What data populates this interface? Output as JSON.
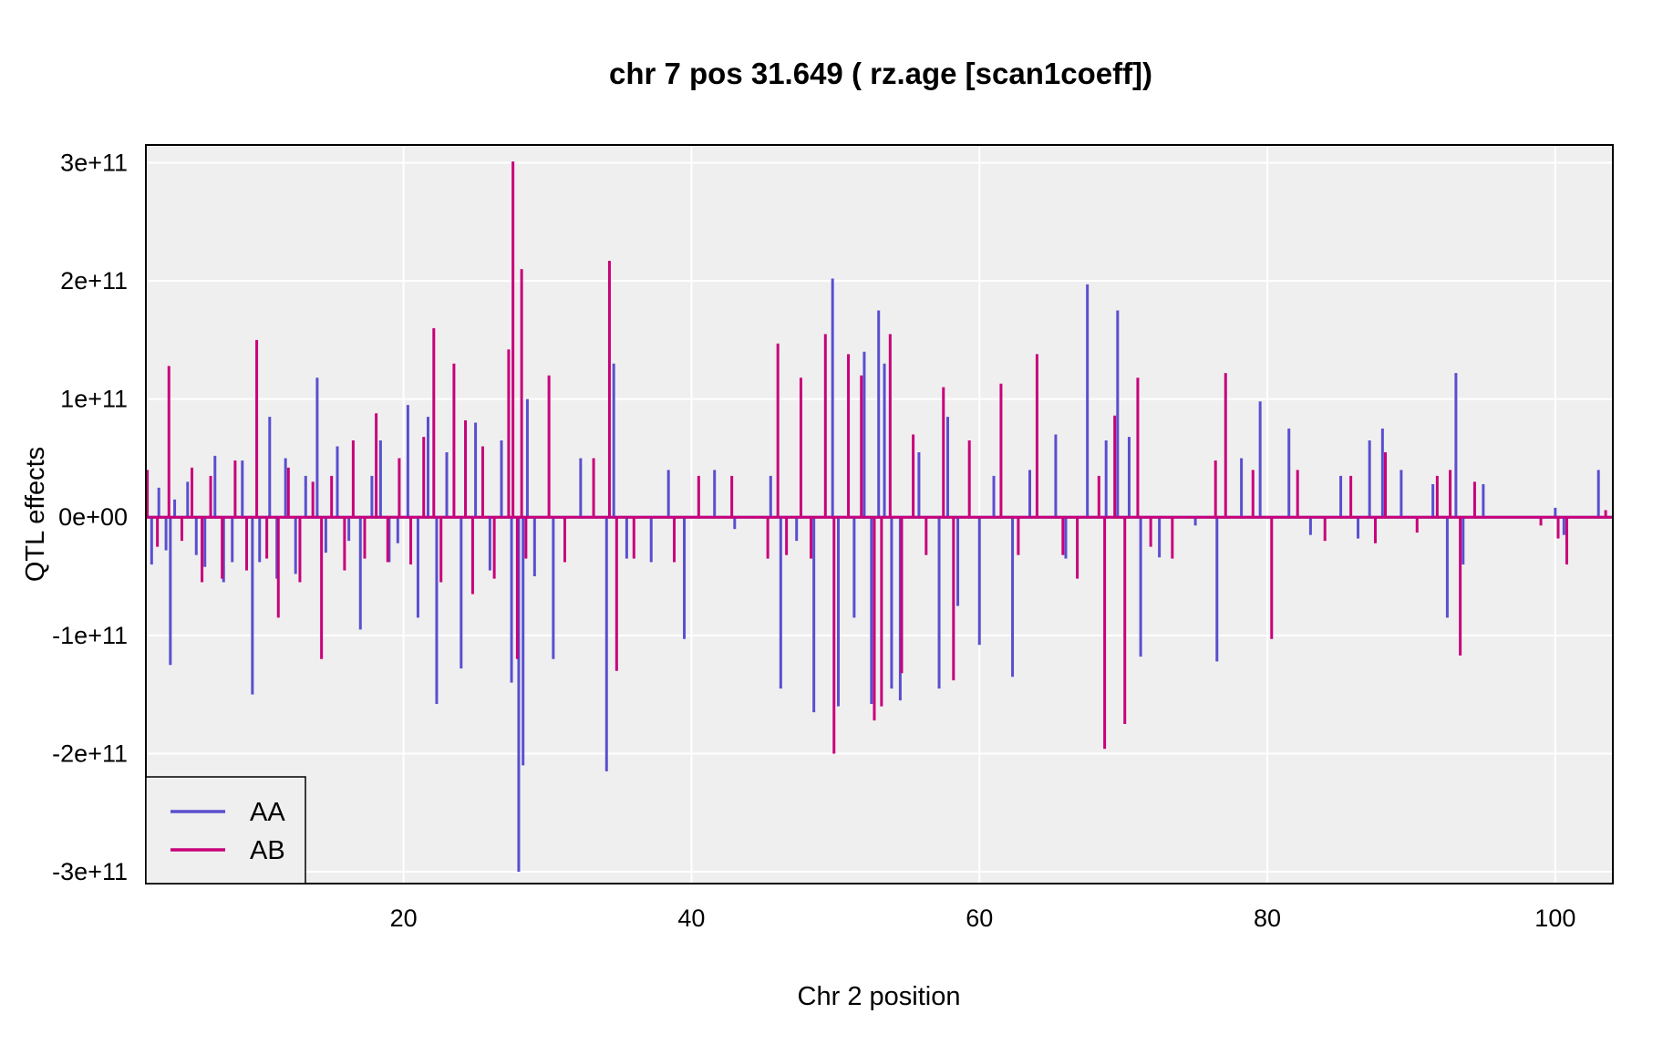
{
  "chart_data": {
    "type": "line",
    "title": "chr 7 pos 31.649 ( rz.age  [scan1coeff])",
    "xlabel": "Chr 2 position",
    "ylabel": "QTL effects",
    "xlim": [
      2.1,
      104
    ],
    "ylim": [
      -310000000000.0,
      315000000000.0
    ],
    "x_ticks": [
      20,
      40,
      60,
      80,
      100
    ],
    "x_tick_labels": [
      "20",
      "40",
      "60",
      "80",
      "100"
    ],
    "y_ticks": [
      300000000000.0,
      200000000000.0,
      100000000000.0,
      0,
      -100000000000.0,
      -200000000000.0,
      -300000000000.0
    ],
    "y_tick_labels": [
      "3e+11",
      "2e+11",
      "1e+11",
      "0e+00",
      "-1e+11",
      "-2e+11",
      "-3e+11"
    ],
    "grid": true,
    "legend_position": "bottom-left",
    "colors": {
      "AA": "#5a4fcf",
      "AB": "#c8007a",
      "panel_bg": "#efefef",
      "grid": "#ffffff"
    },
    "series": [
      {
        "name": "AA",
        "color": "#5a4fcf",
        "x": [
          2.5,
          3.0,
          3.5,
          3.8,
          4.1,
          5.0,
          5.6,
          6.2,
          6.9,
          7.5,
          8.1,
          8.8,
          9.5,
          10.0,
          10.7,
          11.2,
          11.8,
          12.5,
          13.2,
          14.0,
          14.6,
          15.4,
          16.2,
          17.0,
          17.8,
          18.4,
          19.0,
          19.6,
          20.3,
          21.0,
          21.7,
          22.3,
          23.0,
          24.0,
          25.0,
          26.0,
          26.8,
          27.5,
          28.0,
          28.3,
          28.6,
          29.1,
          30.4,
          32.3,
          34.1,
          34.6,
          35.5,
          37.2,
          38.4,
          39.5,
          41.6,
          43.0,
          45.5,
          46.2,
          47.3,
          48.5,
          49.8,
          50.2,
          51.3,
          52.0,
          52.5,
          53.0,
          53.4,
          53.9,
          54.5,
          55.8,
          57.2,
          57.8,
          58.5,
          60.0,
          61.0,
          62.3,
          63.5,
          65.3,
          66.0,
          67.5,
          68.8,
          69.6,
          70.4,
          71.2,
          72.5,
          75.0,
          76.5,
          78.2,
          79.5,
          81.5,
          83.0,
          85.1,
          86.3,
          87.1,
          88.0,
          89.3,
          91.5,
          92.5,
          93.1,
          93.6,
          95.0,
          100.0,
          100.6,
          103.0
        ],
        "y": [
          -40000000000.0,
          25000000000.0,
          -28000000000.0,
          -125000000000.0,
          15000000000.0,
          30000000000.0,
          -32000000000.0,
          -42000000000.0,
          52000000000.0,
          -55000000000.0,
          -38000000000.0,
          48000000000.0,
          -150000000000.0,
          -38000000000.0,
          85000000000.0,
          -52000000000.0,
          50000000000.0,
          -48000000000.0,
          35000000000.0,
          118000000000.0,
          -30000000000.0,
          60000000000.0,
          -20000000000.0,
          -95000000000.0,
          35000000000.0,
          65000000000.0,
          -38000000000.0,
          -22000000000.0,
          95000000000.0,
          -85000000000.0,
          85000000000.0,
          -158000000000.0,
          55000000000.0,
          -128000000000.0,
          80000000000.0,
          -45000000000.0,
          65000000000.0,
          -140000000000.0,
          -300000000000.0,
          -210000000000.0,
          100000000000.0,
          -50000000000.0,
          -120000000000.0,
          50000000000.0,
          -215000000000.0,
          130000000000.0,
          -35000000000.0,
          -38000000000.0,
          40000000000.0,
          -103000000000.0,
          40000000000.0,
          -10000000000.0,
          35000000000.0,
          -145000000000.0,
          -20000000000.0,
          -165000000000.0,
          202000000000.0,
          -160000000000.0,
          -85000000000.0,
          140000000000.0,
          -158000000000.0,
          175000000000.0,
          130000000000.0,
          -145000000000.0,
          -155000000000.0,
          55000000000.0,
          -145000000000.0,
          85000000000.0,
          -75000000000.0,
          -108000000000.0,
          35000000000.0,
          -135000000000.0,
          40000000000.0,
          70000000000.0,
          -35000000000.0,
          197000000000.0,
          65000000000.0,
          175000000000.0,
          68000000000.0,
          -118000000000.0,
          -34000000000.0,
          -7000000000.0,
          -122000000000.0,
          50000000000.0,
          98000000000.0,
          75000000000.0,
          -15000000000.0,
          35000000000.0,
          -18000000000.0,
          65000000000.0,
          75000000000.0,
          40000000000.0,
          28000000000.0,
          -85000000000.0,
          122000000000.0,
          -40000000000.0,
          28000000000.0,
          8000000000.0,
          -15000000000.0,
          40000000000.0
        ]
      },
      {
        "name": "AB",
        "color": "#c8007a",
        "x": [
          2.2,
          2.9,
          3.7,
          4.6,
          5.3,
          6.0,
          6.6,
          7.4,
          8.3,
          9.1,
          9.8,
          10.5,
          11.3,
          12.0,
          12.8,
          13.7,
          14.3,
          15.0,
          15.9,
          16.5,
          17.3,
          18.1,
          18.9,
          19.7,
          20.5,
          21.4,
          22.1,
          22.6,
          23.5,
          24.3,
          24.8,
          25.5,
          26.3,
          27.3,
          27.6,
          27.9,
          28.2,
          28.5,
          30.1,
          31.2,
          33.2,
          34.3,
          34.8,
          36.0,
          38.8,
          40.5,
          42.8,
          45.3,
          46.0,
          46.6,
          47.6,
          48.3,
          49.3,
          49.9,
          50.9,
          51.8,
          52.7,
          53.2,
          53.8,
          54.6,
          55.4,
          56.3,
          57.5,
          58.2,
          59.3,
          61.5,
          62.7,
          64.0,
          65.8,
          66.8,
          68.3,
          68.7,
          69.4,
          70.1,
          71.0,
          71.9,
          73.4,
          76.4,
          77.1,
          79.0,
          80.3,
          82.1,
          84.0,
          85.8,
          87.5,
          88.2,
          90.4,
          91.8,
          92.7,
          93.4,
          94.4,
          99.0,
          100.2,
          100.8,
          103.5
        ],
        "y": [
          40000000000.0,
          -25000000000.0,
          128000000000.0,
          -20000000000.0,
          42000000000.0,
          -55000000000.0,
          35000000000.0,
          -52000000000.0,
          48000000000.0,
          -45000000000.0,
          150000000000.0,
          -35000000000.0,
          -85000000000.0,
          42000000000.0,
          -55000000000.0,
          30000000000.0,
          -120000000000.0,
          35000000000.0,
          -45000000000.0,
          65000000000.0,
          -35000000000.0,
          88000000000.0,
          -38000000000.0,
          50000000000.0,
          -40000000000.0,
          68000000000.0,
          160000000000.0,
          -55000000000.0,
          130000000000.0,
          82000000000.0,
          -65000000000.0,
          60000000000.0,
          -52000000000.0,
          142000000000.0,
          301000000000.0,
          -120000000000.0,
          210000000000.0,
          -35000000000.0,
          120000000000.0,
          -38000000000.0,
          50000000000.0,
          217000000000.0,
          -130000000000.0,
          -35000000000.0,
          -38000000000.0,
          35000000000.0,
          35000000000.0,
          -35000000000.0,
          147000000000.0,
          -32000000000.0,
          118000000000.0,
          -35000000000.0,
          155000000000.0,
          -200000000000.0,
          138000000000.0,
          120000000000.0,
          -172000000000.0,
          -160000000000.0,
          155000000000.0,
          -132000000000.0,
          70000000000.0,
          -32000000000.0,
          110000000000.0,
          -138000000000.0,
          65000000000.0,
          113000000000.0,
          -32000000000.0,
          138000000000.0,
          -32000000000.0,
          -52000000000.0,
          35000000000.0,
          -196000000000.0,
          86000000000.0,
          -175000000000.0,
          118000000000.0,
          -25000000000.0,
          -35000000000.0,
          48000000000.0,
          122000000000.0,
          40000000000.0,
          -103000000000.0,
          40000000000.0,
          -20000000000.0,
          35000000000.0,
          -22000000000.0,
          55000000000.0,
          -13000000000.0,
          35000000000.0,
          40000000000.0,
          -117000000000.0,
          30000000000.0,
          -7000000000.0,
          -18000000000.0,
          -40000000000.0,
          6000000000.0
        ]
      }
    ]
  }
}
